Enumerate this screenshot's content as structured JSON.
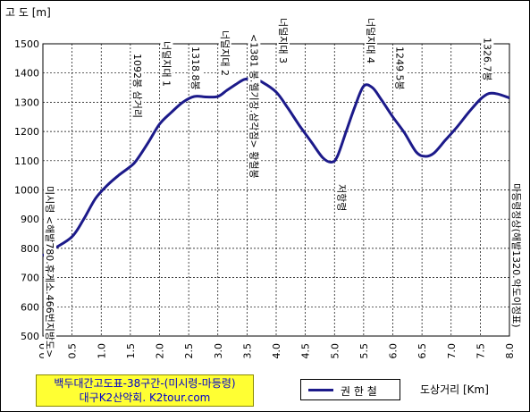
{
  "chart_data": {
    "type": "line",
    "ylabel": "고 도 [m]",
    "xlabel": "도상거리 [Km]",
    "xlim": [
      0.0,
      8.0
    ],
    "ylim": [
      500,
      1500
    ],
    "xticks": [
      "0.0",
      "0.5",
      "1.0",
      "1.5",
      "2.0",
      "2.5",
      "3.0",
      "3.5",
      "4.0",
      "4.5",
      "5.0",
      "5.5",
      "6.0",
      "6.5",
      "7.0",
      "7.5",
      "8.0"
    ],
    "yticks": [
      "500",
      "600",
      "700",
      "800",
      "900",
      "1000",
      "1100",
      "1200",
      "1300",
      "1400",
      "1500"
    ],
    "grid": true,
    "legend_position": "bottom",
    "series": [
      {
        "name": "권 한 철",
        "color": "#1c1a8a",
        "x": [
          0.0,
          0.2,
          0.5,
          0.7,
          0.9,
          1.1,
          1.3,
          1.5,
          1.6,
          1.8,
          2.0,
          2.2,
          2.4,
          2.6,
          2.8,
          3.0,
          3.15,
          3.3,
          3.45,
          3.6,
          3.75,
          4.0,
          4.2,
          4.4,
          4.6,
          4.8,
          4.95,
          5.05,
          5.2,
          5.35,
          5.5,
          5.65,
          5.8,
          6.0,
          6.2,
          6.4,
          6.55,
          6.7,
          6.9,
          7.1,
          7.3,
          7.5,
          7.65,
          7.8,
          8.0
        ],
        "y": [
          775,
          800,
          840,
          900,
          970,
          1015,
          1050,
          1080,
          1100,
          1160,
          1225,
          1265,
          1300,
          1320,
          1318,
          1320,
          1340,
          1360,
          1378,
          1380,
          1370,
          1335,
          1280,
          1220,
          1165,
          1110,
          1095,
          1115,
          1200,
          1285,
          1355,
          1350,
          1310,
          1250,
          1195,
          1130,
          1115,
          1125,
          1170,
          1215,
          1265,
          1310,
          1330,
          1328,
          1315
        ]
      }
    ],
    "annotations": [
      {
        "x": 0.0,
        "text": "미시령 <해발780.휴게소.466번지방도>"
      },
      {
        "x": 1.5,
        "text": "1092봉 삼거리"
      },
      {
        "x": 2.0,
        "text": "너덜지대 1"
      },
      {
        "x": 2.5,
        "text": "1318.8봉"
      },
      {
        "x": 3.0,
        "text": "너덜지대 2"
      },
      {
        "x": 3.5,
        "text": "<1381 봉.헬기장.삼각점> 황철봉"
      },
      {
        "x": 4.0,
        "text": "너덜지대 3"
      },
      {
        "x": 5.0,
        "text": "저항령"
      },
      {
        "x": 5.5,
        "text": "너덜지대 4"
      },
      {
        "x": 6.0,
        "text": "1249.5봉"
      },
      {
        "x": 7.5,
        "text": "1326.7봉"
      },
      {
        "x": 8.0,
        "text": "마등령정상(해발1320.악도이정표)"
      }
    ]
  },
  "info": {
    "line1": "백두대간고도표-38구간-(미시령-마등령)",
    "line2": "대구K2산악회.  K2tour.com"
  }
}
